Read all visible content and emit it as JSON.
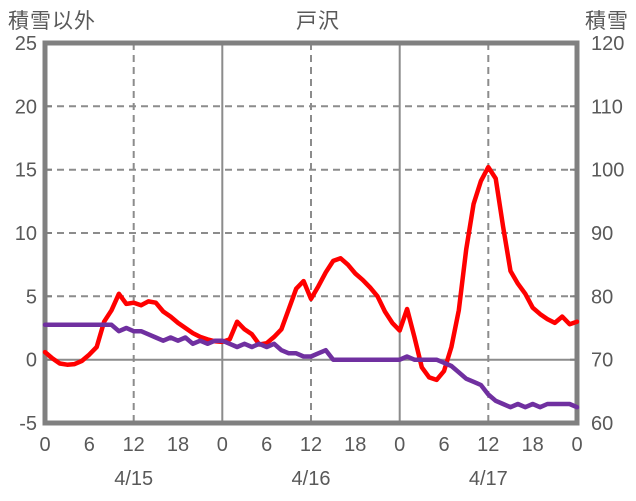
{
  "title": "戸沢",
  "left_axis_title": "積雪以外",
  "right_axis_title": "積雪",
  "colors": {
    "background": "#ffffff",
    "axis_border": "#808080",
    "gridline": "#8c8c8c",
    "text": "#595959",
    "series_other_than_snow": "#ff0000",
    "series_snow_depth": "#7030a0"
  },
  "chart_data": {
    "type": "line",
    "title": "戸沢",
    "x_axis": {
      "unit": "hour",
      "start_hour": 0,
      "end_hour": 72,
      "tick_interval_hours": 6,
      "tick_labels": [
        "0",
        "6",
        "12",
        "18",
        "0",
        "6",
        "12",
        "18",
        "0",
        "6",
        "12",
        "18",
        "0"
      ],
      "date_labels": [
        {
          "label": "4/15",
          "noon_hour": 12
        },
        {
          "label": "4/16",
          "noon_hour": 36
        },
        {
          "label": "4/17",
          "noon_hour": 60
        }
      ]
    },
    "left_axis": {
      "title": "積雪以外",
      "min": -5,
      "max": 25,
      "tick_step": 5,
      "tick_labels": [
        "25",
        "20",
        "15",
        "10",
        "5",
        "0",
        "-5"
      ]
    },
    "right_axis": {
      "title": "積雪",
      "min": 60,
      "max": 120,
      "tick_step": 10,
      "tick_labels": [
        "120",
        "110",
        "100",
        "90",
        "80",
        "70",
        "60"
      ]
    },
    "series": [
      {
        "name": "積雪以外",
        "axis": "left",
        "color": "#ff0000",
        "values": [
          0.6,
          0.1,
          -0.3,
          -0.4,
          -0.35,
          -0.1,
          0.4,
          1.0,
          3.0,
          3.9,
          5.2,
          4.4,
          4.5,
          4.3,
          4.6,
          4.5,
          3.8,
          3.4,
          2.9,
          2.5,
          2.1,
          1.8,
          1.6,
          1.45,
          1.4,
          1.6,
          3.0,
          2.4,
          2.0,
          1.2,
          1.3,
          1.8,
          2.4,
          4.0,
          5.6,
          6.2,
          4.8,
          5.8,
          6.9,
          7.8,
          8.0,
          7.5,
          6.8,
          6.3,
          5.7,
          5.0,
          3.8,
          2.9,
          2.3,
          4.0,
          1.8,
          -0.6,
          -1.4,
          -1.6,
          -0.9,
          1.0,
          3.9,
          8.7,
          12.3,
          14.1,
          15.2,
          14.3,
          10.5,
          7.0,
          6.0,
          5.2,
          4.1,
          3.6,
          3.2,
          2.9,
          3.4,
          2.8,
          3.0
        ]
      },
      {
        "name": "積雪",
        "axis": "right",
        "color": "#7030a0",
        "values": [
          75.5,
          75.5,
          75.5,
          75.5,
          75.5,
          75.5,
          75.5,
          75.5,
          75.5,
          75.5,
          74.5,
          75.0,
          74.5,
          74.5,
          74.0,
          73.5,
          73.0,
          73.5,
          73.0,
          73.5,
          72.5,
          73.0,
          72.5,
          73.0,
          73.0,
          72.5,
          72.0,
          72.5,
          72.0,
          72.5,
          72.0,
          72.5,
          71.5,
          71.0,
          71.0,
          70.5,
          70.5,
          71.0,
          71.5,
          70.0,
          70.0,
          70.0,
          70.0,
          70.0,
          70.0,
          70.0,
          70.0,
          70.0,
          70.0,
          70.5,
          70.0,
          70.0,
          70.0,
          70.0,
          69.5,
          69.0,
          68.0,
          67.0,
          66.5,
          66.0,
          64.5,
          63.5,
          63.0,
          62.5,
          63.0,
          62.5,
          63.0,
          62.5,
          63.0,
          63.0,
          63.0,
          63.0,
          62.5
        ]
      }
    ]
  }
}
